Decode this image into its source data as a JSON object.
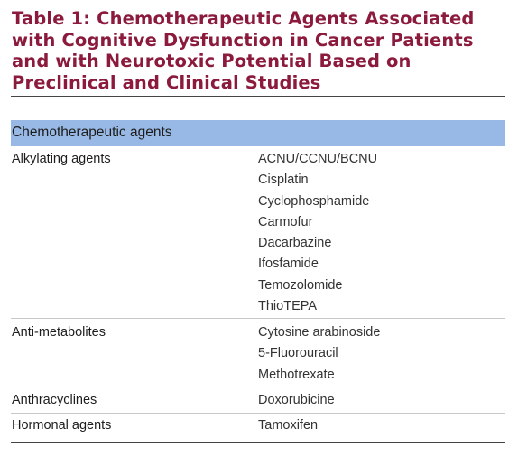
{
  "title": "Table 1: Chemotherapeutic Agents Associated with Cognitive Dysfunction in Cancer Patients and with Neurotoxic Potential Based on Preclinical and Clinical Studies",
  "colors": {
    "title": "#8b1a3c",
    "header_band": "#98b9e5",
    "text": "#1d1d1d",
    "rule": "#c8c8c8"
  },
  "table": {
    "header": "Chemotherapeutic agents",
    "rows": [
      {
        "category": "Alkylating agents",
        "agents": [
          "ACNU/CCNU/BCNU",
          "Cisplatin",
          "Cyclophosphamide",
          "Carmofur",
          "Dacarbazine",
          "Ifosfamide",
          "Temozolomide",
          "ThioTEPA"
        ]
      },
      {
        "category": "Anti-metabolites",
        "agents": [
          "Cytosine arabinoside",
          "5-Fluorouracil",
          "Methotrexate"
        ]
      },
      {
        "category": "Anthracyclines",
        "agents": [
          "Doxorubicine"
        ]
      },
      {
        "category": "Hormonal agents",
        "agents": [
          "Tamoxifen"
        ]
      }
    ]
  }
}
